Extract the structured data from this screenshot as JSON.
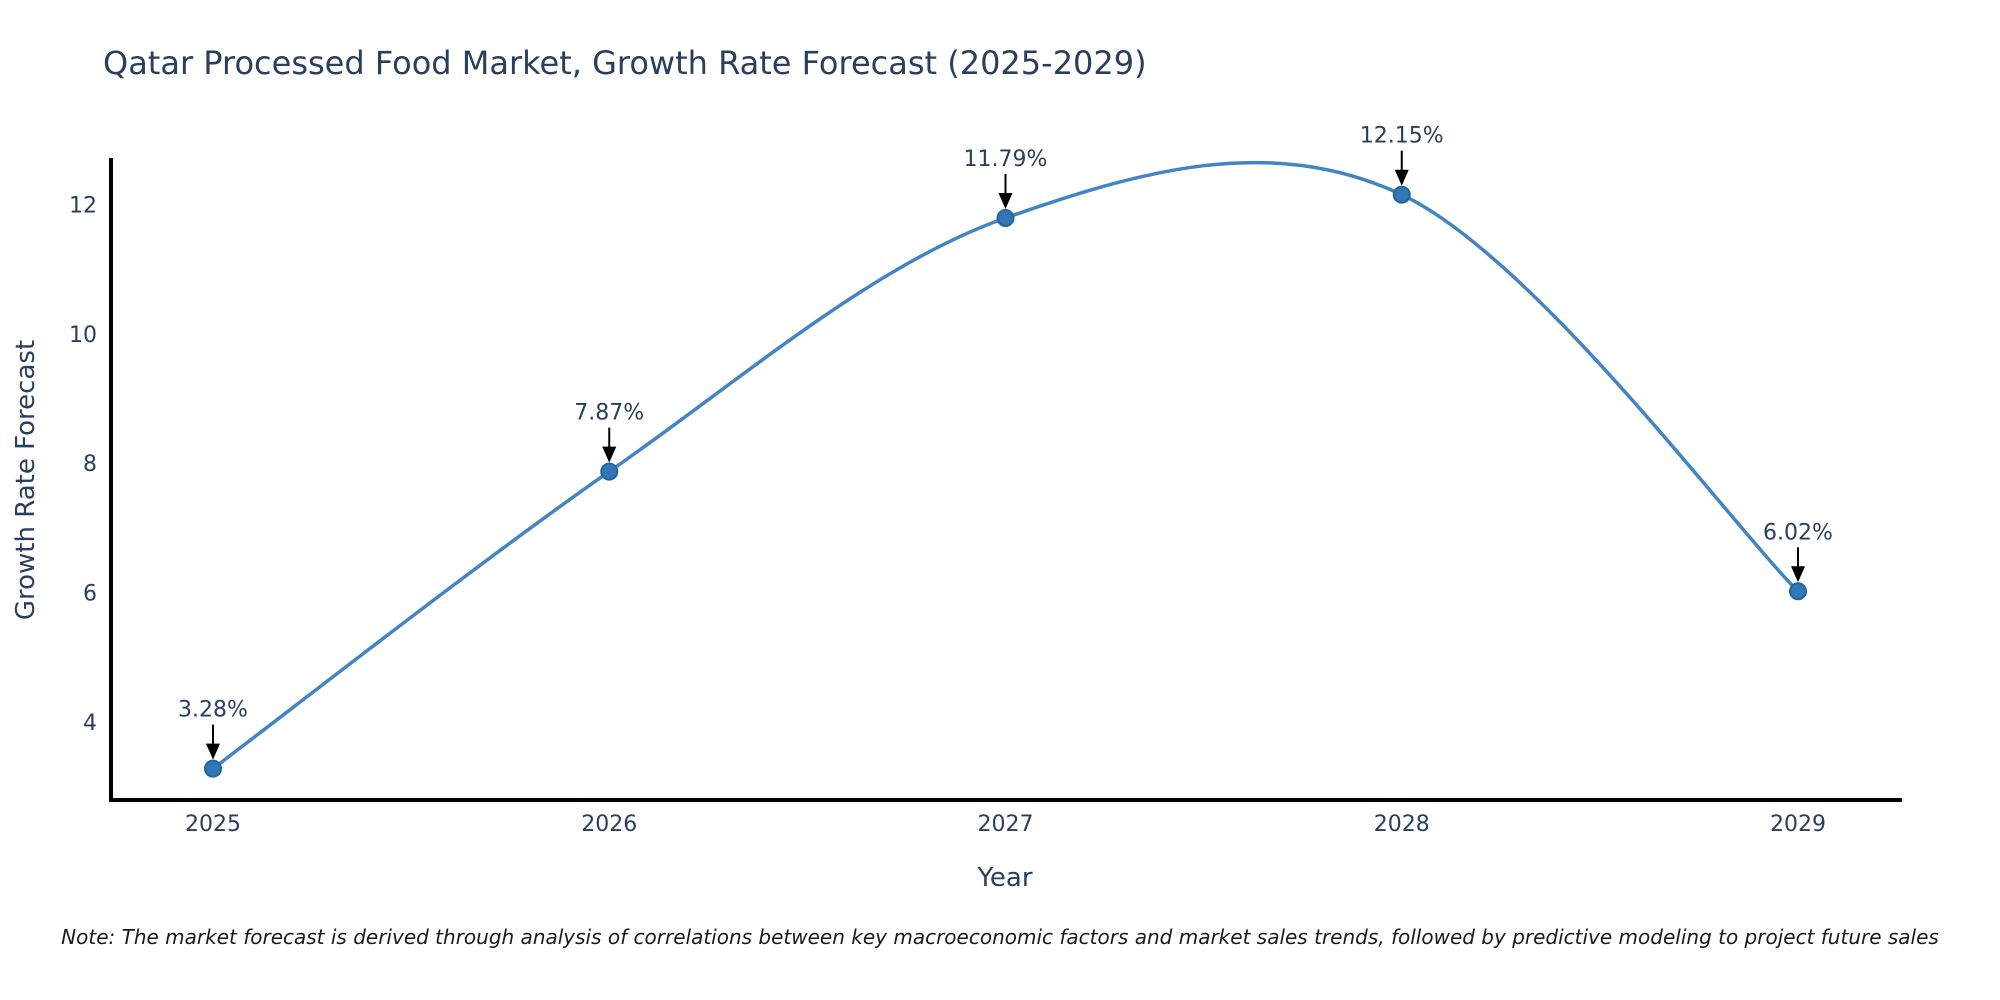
{
  "note": "Note: The market forecast is derived through analysis of correlations between key macroeconomic factors and market sales trends, followed by predictive modeling to project future sales",
  "chart_data": {
    "type": "line",
    "line_shape": "spline",
    "title": "Qatar Processed Food Market, Growth Rate Forecast (2025-2029)",
    "xlabel": "Year",
    "ylabel": "Growth Rate Forecast",
    "categories": [
      "2025",
      "2026",
      "2027",
      "2028",
      "2029"
    ],
    "values": [
      3.28,
      7.87,
      11.79,
      12.15,
      6.02
    ],
    "point_labels": [
      "3.28%",
      "7.87%",
      "11.79%",
      "12.15%",
      "6.02%"
    ],
    "yticks": [
      4,
      6,
      8,
      10,
      12
    ],
    "ylim": [
      2.8,
      12.7
    ],
    "grid": false,
    "legend": "none",
    "annotations": "value label with black down-arrow above each data point",
    "colors": {
      "line": "#4285c2",
      "marker_fill": "#3277b5",
      "marker_edge": "#2263a0",
      "text": "#2a3f5f",
      "axis_line": "#000000",
      "note_text": "#1a1a1a",
      "background": "#ffffff"
    }
  }
}
